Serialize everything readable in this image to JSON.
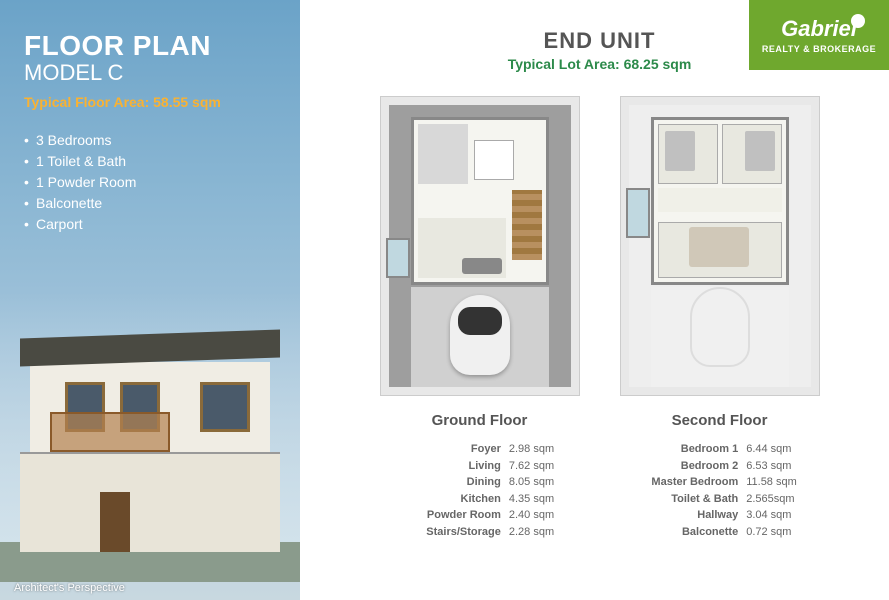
{
  "left": {
    "title": "FLOOR PLAN",
    "subtitle": "MODEL C",
    "floor_area_label": "Typical Floor Area: 58.55  sqm",
    "features": [
      "3 Bedrooms",
      "1 Toilet & Bath",
      "1 Powder Room",
      "Balconette",
      "Carport"
    ],
    "perspective_label": "Architect's Perspective"
  },
  "logo": {
    "main": "Gabriel",
    "sub": "REALTY & BROKERAGE"
  },
  "header": {
    "end_unit": "END UNIT",
    "lot_area": "Typical Lot Area: 68.25 sqm"
  },
  "ground": {
    "label": "Ground Floor",
    "rooms": [
      {
        "name": "Foyer",
        "area": "2.98 sqm"
      },
      {
        "name": "Living",
        "area": "7.62 sqm"
      },
      {
        "name": "Dining",
        "area": "8.05 sqm"
      },
      {
        "name": "Kitchen",
        "area": "4.35 sqm"
      },
      {
        "name": "Powder Room",
        "area": "2.40 sqm"
      },
      {
        "name": "Stairs/Storage",
        "area": "2.28 sqm"
      }
    ]
  },
  "second": {
    "label": "Second Floor",
    "rooms": [
      {
        "name": "Bedroom 1",
        "area": "6.44 sqm"
      },
      {
        "name": "Bedroom 2",
        "area": "6.53 sqm"
      },
      {
        "name": "Master Bedroom",
        "area": "11.58 sqm"
      },
      {
        "name": "Toilet & Bath",
        "area": "2.565sqm"
      },
      {
        "name": "Hallway",
        "area": "3.04 sqm"
      },
      {
        "name": "Balconette",
        "area": "0.72 sqm"
      }
    ]
  },
  "colors": {
    "accent_orange": "#f9b233",
    "accent_green": "#2c8a4a",
    "logo_green": "#6fa82e",
    "text_gray": "#555555"
  }
}
